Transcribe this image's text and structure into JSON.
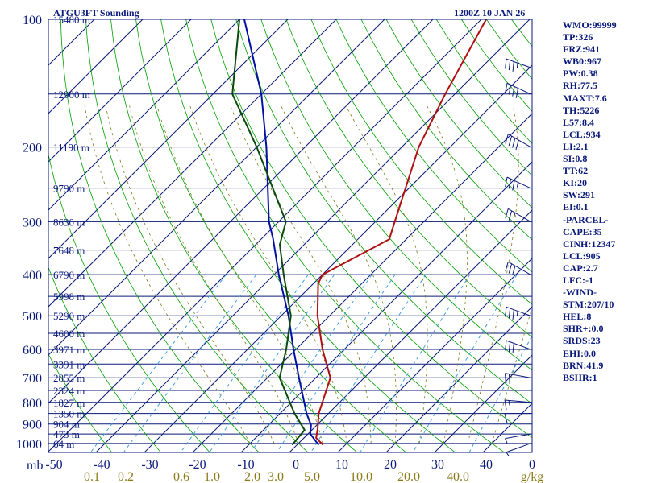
{
  "header": {
    "title": "ATGU3FT Sounding",
    "datetime": "1200Z 10 JAN 26"
  },
  "stats": [
    "WMO:99999",
    "TP:326",
    "FRZ:941",
    "WB0:967",
    "PW:0.38",
    "RH:77.5",
    "MAXT:7.6",
    "TH:5226",
    "L57:8.4",
    "LCL:934",
    "LI:2.1",
    "SI:0.8",
    "TT:62",
    "KI:20",
    "SW:291",
    "EI:0.1",
    "-PARCEL-",
    "CAPE:35",
    "CINH:12347",
    "LCL:905",
    "CAP:2.7",
    "LFC:-1",
    "-WIND-",
    "STM:207/10",
    "HEL:8",
    "SHR+:0.0",
    "SRDS:23",
    "EHI:0.0",
    "BRN:41.9",
    "BSHR:1"
  ],
  "colors": {
    "border": "#0a1a7a",
    "isobar": "#0a1a7a",
    "isotherm": "#0a1a7a",
    "dry_adiabat": "#00a000",
    "moist_adiabat": "#7a7a1a",
    "mixing_ratio": "#40a0e0",
    "temperature": "#b01010",
    "dewpoint": "#0a4a0a",
    "parcel": "#0010a0",
    "barb": "#0a1a7a",
    "height_label": "#0a1a7a",
    "mixing_label": "#8a7a1a"
  },
  "chart_data": {
    "type": "skew-t",
    "axes": {
      "pressure_label": "mb",
      "temperature_label": "C",
      "mixing_ratio_unit": "g/kg"
    },
    "pressure_ticks": [
      100,
      200,
      300,
      400,
      500,
      600,
      700,
      800,
      900,
      1000
    ],
    "temperature_ticks": [
      -50,
      -40,
      -30,
      -20,
      -10,
      0,
      10,
      20,
      30,
      40,
      0
    ],
    "mixing_ratio_ticks": [
      "0.1",
      "0.2",
      "0.6",
      "1.0",
      "2.0",
      "3.0",
      "5.0",
      "10.0",
      "20.0",
      "40.0"
    ],
    "heights": [
      {
        "p": 100,
        "h": "15480 m"
      },
      {
        "p": 150,
        "h": "12900 m"
      },
      {
        "p": 200,
        "h": "11190 m"
      },
      {
        "p": 250,
        "h": "9790 m"
      },
      {
        "p": 300,
        "h": "8630 m"
      },
      {
        "p": 350,
        "h": "7648 m"
      },
      {
        "p": 400,
        "h": "6790 m"
      },
      {
        "p": 450,
        "h": "5998 m"
      },
      {
        "p": 500,
        "h": "5290 m"
      },
      {
        "p": 550,
        "h": "4600 m"
      },
      {
        "p": 600,
        "h": "3971 m"
      },
      {
        "p": 650,
        "h": "3391 m"
      },
      {
        "p": 700,
        "h": "2855 m"
      },
      {
        "p": 750,
        "h": "2324 m"
      },
      {
        "p": 800,
        "h": "1827 m"
      },
      {
        "p": 850,
        "h": "1350 m"
      },
      {
        "p": 900,
        "h": "904 m"
      },
      {
        "p": 950,
        "h": "473 m"
      },
      {
        "p": 1000,
        "h": "64 m"
      }
    ],
    "temperature": [
      {
        "p": 1008,
        "t": 5.4
      },
      {
        "p": 970,
        "t": 2.5
      },
      {
        "p": 925,
        "t": 1.0
      },
      {
        "p": 850,
        "t": -2.0
      },
      {
        "p": 700,
        "t": -7.0
      },
      {
        "p": 600,
        "t": -14.5
      },
      {
        "p": 500,
        "t": -22.5
      },
      {
        "p": 420,
        "t": -29.0
      },
      {
        "p": 400,
        "t": -30.0
      },
      {
        "p": 330,
        "t": -23.5
      },
      {
        "p": 300,
        "t": -26.0
      },
      {
        "p": 200,
        "t": -36.5
      },
      {
        "p": 150,
        "t": -42.0
      },
      {
        "p": 100,
        "t": -49.0
      }
    ],
    "dewpoint": [
      {
        "p": 1008,
        "t": -1.0
      },
      {
        "p": 930,
        "t": -1.5
      },
      {
        "p": 850,
        "t": -7.0
      },
      {
        "p": 700,
        "t": -17.5
      },
      {
        "p": 600,
        "t": -22.0
      },
      {
        "p": 500,
        "t": -28.0
      },
      {
        "p": 400,
        "t": -38.0
      },
      {
        "p": 340,
        "t": -45.0
      },
      {
        "p": 300,
        "t": -48.5
      },
      {
        "p": 200,
        "t": -70.0
      },
      {
        "p": 150,
        "t": -86.0
      },
      {
        "p": 100,
        "t": -100.0
      }
    ],
    "parcel": [
      {
        "p": 1008,
        "t": 4.5
      },
      {
        "p": 950,
        "t": 0.5
      },
      {
        "p": 905,
        "t": -1.2
      },
      {
        "p": 850,
        "t": -4.5
      },
      {
        "p": 700,
        "t": -13.5
      },
      {
        "p": 600,
        "t": -20.5
      },
      {
        "p": 500,
        "t": -28.5
      },
      {
        "p": 400,
        "t": -39.0
      },
      {
        "p": 330,
        "t": -47.5
      },
      {
        "p": 300,
        "t": -52.0
      },
      {
        "p": 200,
        "t": -68.0
      },
      {
        "p": 150,
        "t": -80.0
      },
      {
        "p": 100,
        "t": -99.0
      }
    ],
    "wind_barbs": [
      {
        "p": 1000,
        "dir": 250,
        "spd": 5
      },
      {
        "p": 950,
        "dir": 260,
        "spd": 5
      },
      {
        "p": 850,
        "dir": 270,
        "spd": 10
      },
      {
        "p": 800,
        "dir": 275,
        "spd": 15
      },
      {
        "p": 700,
        "dir": 280,
        "spd": 20
      },
      {
        "p": 600,
        "dir": 290,
        "spd": 30
      },
      {
        "p": 500,
        "dir": 290,
        "spd": 35
      },
      {
        "p": 400,
        "dir": 300,
        "spd": 30
      },
      {
        "p": 300,
        "dir": 300,
        "spd": 25
      },
      {
        "p": 250,
        "dir": 295,
        "spd": 35
      },
      {
        "p": 200,
        "dir": 300,
        "spd": 40
      },
      {
        "p": 150,
        "dir": 295,
        "spd": 40
      },
      {
        "p": 130,
        "dir": 290,
        "spd": 35
      }
    ]
  }
}
